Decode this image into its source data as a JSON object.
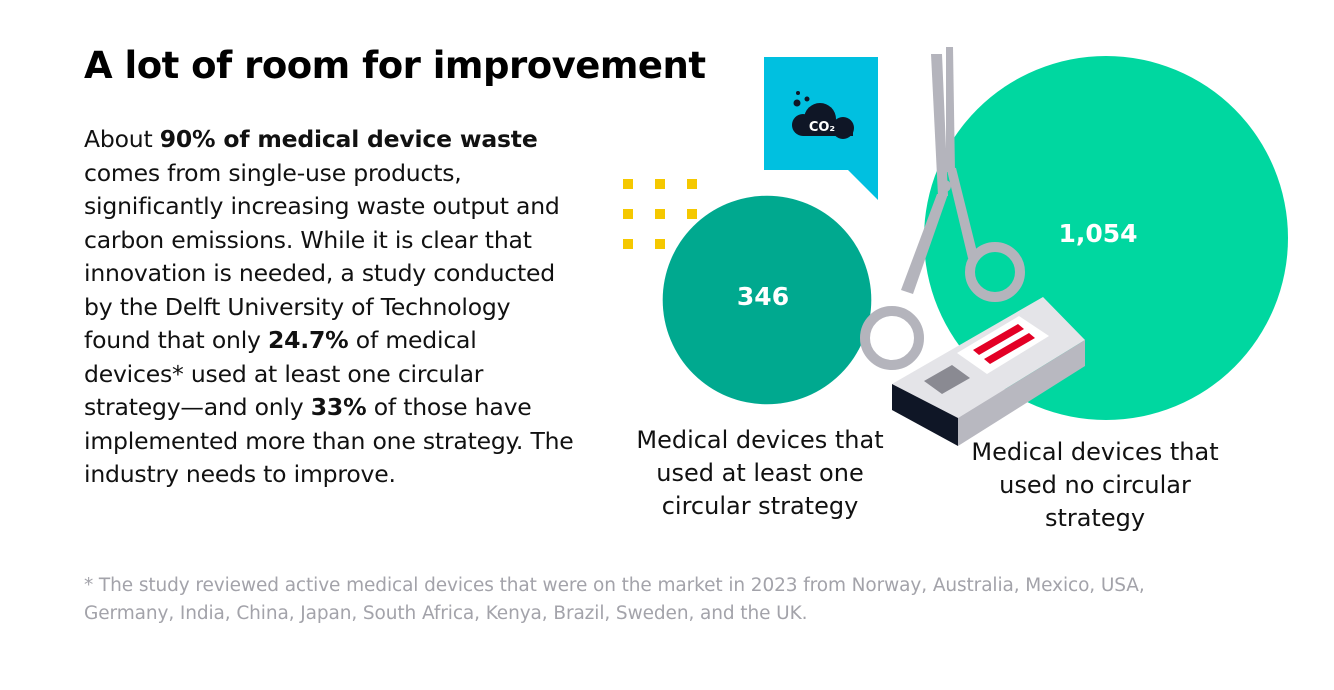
{
  "title": "A lot of room for improvement",
  "body": {
    "s1": "About ",
    "b1": "90% of medical device waste",
    "s2": " comes from single-use products, significantly increasing waste output and carbon emissions. While it is clear that innovation is needed, a study conducted by the Delft University of Technology found that only ",
    "b2": "24.7%",
    "s3": " of medical devices* used at least one circular strategy—and only ",
    "b3": "33%",
    "s4": " of those have implemented more than one strategy. The industry needs to improve."
  },
  "footnote": "* The study reviewed active medical devices that were on the market in 2023 from Norway, Australia, Mexico, USA, Germany, India, China, Japan, South Africa, Kenya, Brazil, Sweden, and the UK.",
  "co2_icon_text": "CO₂",
  "colors": {
    "small_bubble": "#00a98f",
    "large_bubble": "#00d7a0",
    "co2_box": "#00c0e0",
    "dots": "#f5c800",
    "icon_dark": "#0f1626",
    "scissors": "#b4b4bc",
    "strip_top": "#e4e4e8",
    "strip_side": "#b8b8c0",
    "strip_front": "#0f1626",
    "strip_window": "#ffffff",
    "strip_lines": "#e30025",
    "strip_pad": "#8a8a92"
  },
  "chart_data": {
    "type": "bubble",
    "categories": [
      "Medical devices that used at least one circular strategy",
      "Medical devices that used no circular strategy"
    ],
    "values": [
      346,
      1054
    ],
    "value_labels": [
      "346",
      "1,054"
    ],
    "title": "",
    "legend": "none"
  }
}
